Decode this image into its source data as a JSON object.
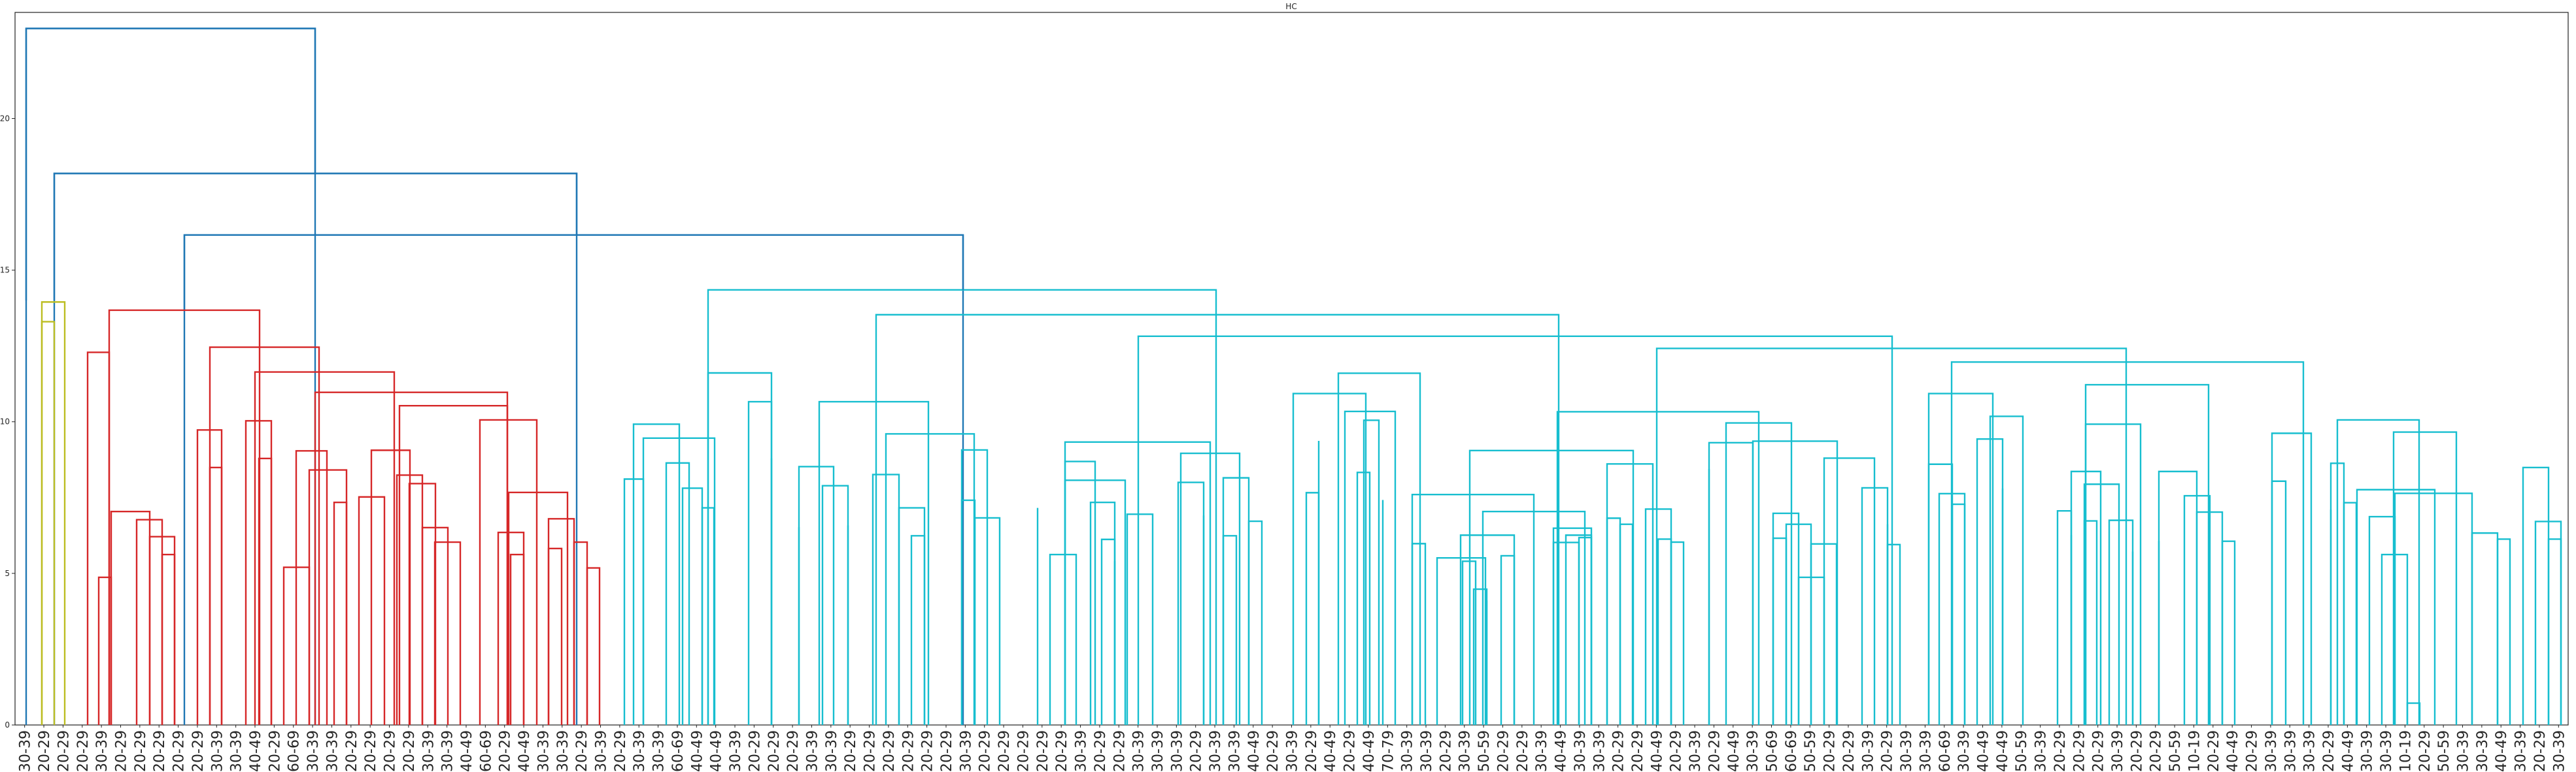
{
  "chart_data": {
    "type": "dendrogram",
    "title": "HC",
    "xlabel": "",
    "ylabel": "",
    "ylim": [
      0,
      23.5
    ],
    "yticks": [
      0,
      5,
      10,
      15,
      20
    ],
    "grid": false,
    "colors": {
      "above_threshold": "#1f77b4",
      "cluster_olive": "#bcbd22",
      "cluster_red": "#d62728",
      "cluster_cyan": "#17becf"
    },
    "leaves": [
      "30-39",
      "20-29",
      "20-29",
      "20-29",
      "30-39",
      "20-29",
      "20-29",
      "20-29",
      "20-29",
      "20-29",
      "30-39",
      "30-39",
      "40-49",
      "20-29",
      "60-69",
      "30-39",
      "30-39",
      "20-29",
      "20-29",
      "20-29",
      "20-29",
      "30-39",
      "30-39",
      "40-49",
      "60-69",
      "20-29",
      "40-49",
      "30-39",
      "30-39",
      "20-29",
      "30-39",
      "20-29",
      "30-39",
      "30-39",
      "60-69",
      "40-49",
      "40-49",
      "30-39",
      "20-29",
      "20-29",
      "20-29",
      "30-39",
      "30-39",
      "20-29",
      "20-29",
      "20-29",
      "20-29",
      "20-29",
      "20-29",
      "30-39",
      "20-29",
      "20-29",
      "20-29",
      "20-29",
      "20-29",
      "30-39",
      "20-29",
      "20-29",
      "30-39",
      "30-39",
      "30-39",
      "20-29",
      "30-39",
      "30-39",
      "40-49",
      "20-29",
      "30-39",
      "20-29",
      "40-49",
      "20-29",
      "40-49",
      "70-79",
      "30-39",
      "30-39",
      "20-29",
      "30-39",
      "50-59",
      "20-29",
      "20-29",
      "30-39",
      "40-49",
      "30-39",
      "30-39",
      "20-29",
      "20-29",
      "40-49",
      "20-29",
      "30-39",
      "20-29",
      "40-49",
      "30-39",
      "50-69",
      "60-69",
      "50-59",
      "20-29",
      "20-29",
      "30-39",
      "20-29",
      "30-39",
      "30-39",
      "60-69",
      "30-39",
      "40-49",
      "40-49",
      "50-59",
      "30-39",
      "20-29",
      "20-29",
      "20-29",
      "30-39",
      "20-29",
      "20-29",
      "50-59",
      "10-19",
      "20-29",
      "40-49",
      "20-29",
      "30-39",
      "30-39",
      "30-39",
      "20-29",
      "40-49",
      "30-39",
      "30-39",
      "10-19",
      "20-29",
      "50-59",
      "30-39",
      "30-39",
      "40-49",
      "30-39",
      "20-29",
      "30-39"
    ],
    "links": [
      {
        "x": [
          31,
          31,
          112,
          112
        ],
        "y": [
          0,
          22.97,
          22.97,
          0
        ],
        "c": "b"
      },
      {
        "x": [
          62,
          62,
          162,
          162
        ],
        "y": [
          0,
          18.19,
          18.19,
          0
        ],
        "c": "b"
      },
      {
        "x": [
          12,
          12,
          112,
          112
        ],
        "y": [
          0,
          13.95,
          13.95,
          0
        ],
        "c": "o"
      },
      {
        "x": [
          22,
          22,
          0,
          0
        ],
        "y": [
          0,
          13.3,
          13.3,
          0
        ],
        "c": "o"
      },
      {
        "x": [
          100,
          100,
          213,
          213
        ],
        "y": [
          0,
          16.16,
          16.16,
          0
        ],
        "c": "b"
      },
      {
        "x": [
          100,
          100,
          200,
          200
        ],
        "y": [
          0,
          13.68,
          13.68,
          0
        ],
        "c": "r"
      },
      {
        "x": [
          38,
          38,
          100,
          100
        ],
        "y": [
          0,
          12.29,
          12.29,
          0
        ],
        "c": "r"
      },
      {
        "x": [
          17,
          17,
          0,
          0
        ],
        "y": [
          0,
          4.87,
          4.87,
          0
        ],
        "c": "r"
      },
      {
        "x": [
          8,
          8,
          17,
          17
        ],
        "y": [
          0,
          7.04,
          7.04,
          0
        ],
        "c": "r"
      },
      {
        "x": [
          8,
          8,
          21,
          21
        ],
        "y": [
          0,
          6.77,
          6.77,
          0
        ],
        "c": "r"
      },
      {
        "x": [
          8,
          8,
          19,
          19
        ],
        "y": [
          0,
          6.21,
          6.21,
          0
        ],
        "c": "r"
      },
      {
        "x": [
          8,
          8,
          17,
          17
        ],
        "y": [
          0,
          5.62,
          5.62,
          0
        ],
        "c": "r"
      },
      {
        "x": [
          162,
          162,
          100,
          100
        ],
        "y": [
          0,
          12.46,
          12.46,
          0
        ],
        "c": "r"
      },
      {
        "x": [
          52,
          52,
          162,
          162
        ],
        "y": [
          0,
          9.73,
          9.73,
          0
        ],
        "c": "r"
      },
      {
        "x": [
          8,
          8,
          21,
          21
        ],
        "y": [
          0,
          8.49,
          8.49,
          0
        ],
        "c": "r"
      },
      {
        "x": [
          112,
          112,
          212,
          212
        ],
        "y": [
          0,
          11.64,
          11.64,
          0
        ],
        "c": "r"
      },
      {
        "x": [
          52,
          52,
          112,
          112
        ],
        "y": [
          0,
          10.03,
          10.03,
          0
        ],
        "c": "r"
      },
      {
        "x": [
          8,
          8,
          22,
          22
        ],
        "y": [
          0,
          8.79,
          8.79,
          0
        ],
        "c": "r"
      },
      {
        "x": [
          100,
          100,
          200,
          200
        ],
        "y": [
          0,
          10.97,
          10.97,
          0
        ],
        "c": "r"
      },
      {
        "x": [
          42,
          42,
          100,
          100
        ],
        "y": [
          0,
          9.04,
          9.04,
          0
        ],
        "c": "r"
      },
      {
        "x": [
          8,
          8,
          17,
          17
        ],
        "y": [
          0,
          5.2,
          5.2,
          0
        ],
        "c": "r"
      },
      {
        "x": [
          8,
          8,
          22,
          22
        ],
        "y": [
          0,
          8.41,
          8.41,
          0
        ],
        "c": "r"
      },
      {
        "x": [
          8,
          8,
          19,
          19
        ],
        "y": [
          0,
          7.34,
          7.34,
          0
        ],
        "c": "r"
      },
      {
        "x": [
          100,
          100,
          200,
          200
        ],
        "y": [
          0,
          10.53,
          10.53,
          0
        ],
        "c": "r"
      },
      {
        "x": [
          38,
          38,
          100,
          100
        ],
        "y": [
          0,
          9.06,
          9.06,
          0
        ],
        "c": "r"
      },
      {
        "x": [
          8,
          8,
          17,
          17
        ],
        "y": [
          0,
          7.52,
          7.52,
          0
        ],
        "c": "r"
      },
      {
        "x": [
          8,
          8,
          22,
          22
        ],
        "y": [
          0,
          8.24,
          8.24,
          0
        ],
        "c": "r"
      },
      {
        "x": [
          8,
          8,
          20,
          20
        ],
        "y": [
          0,
          7.96,
          7.96,
          0
        ],
        "c": "r"
      },
      {
        "x": [
          8,
          8,
          19,
          19
        ],
        "y": [
          0,
          6.51,
          6.51,
          0
        ],
        "c": "r"
      },
      {
        "x": [
          8,
          8,
          17,
          17
        ],
        "y": [
          0,
          6.03,
          6.03,
          0
        ],
        "c": "r"
      },
      {
        "x": [
          52,
          52,
          162,
          162
        ],
        "y": [
          0,
          10.06,
          10.06,
          0
        ],
        "c": "r"
      },
      {
        "x": [
          8,
          8,
          21,
          21
        ],
        "y": [
          0,
          7.67,
          7.67,
          0
        ],
        "c": "r"
      },
      {
        "x": [
          8,
          8,
          17,
          17
        ],
        "y": [
          0,
          6.35,
          6.35,
          0
        ],
        "c": "r"
      },
      {
        "x": [
          8,
          8,
          22,
          22
        ],
        "y": [
          0,
          5.62,
          5.62,
          0
        ],
        "c": "r"
      },
      {
        "x": [
          8,
          8,
          19,
          19
        ],
        "y": [
          0,
          6.8,
          6.8,
          0
        ],
        "c": "r"
      },
      {
        "x": [
          8,
          8,
          17,
          17
        ],
        "y": [
          0,
          5.82,
          5.82,
          0
        ],
        "c": "r"
      },
      {
        "x": [
          8,
          8,
          22,
          22
        ],
        "y": [
          0,
          6.03,
          6.03,
          0
        ],
        "c": "r"
      },
      {
        "x": [
          8,
          8,
          19,
          19
        ],
        "y": [
          0,
          5.18,
          5.18,
          0
        ],
        "c": "r"
      }
    ]
  }
}
